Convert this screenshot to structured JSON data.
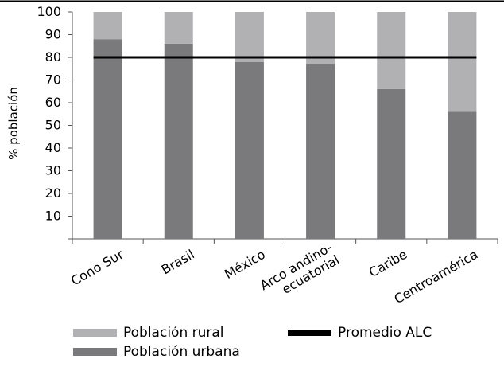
{
  "chart_data": {
    "type": "bar",
    "stacked": true,
    "categories": [
      "Cono Sur",
      "Brasil",
      "México",
      "Arco andino-ecuatorial",
      "Caribe",
      "Centroamérica"
    ],
    "category_label_lines": [
      [
        "Cono Sur"
      ],
      [
        "Brasil"
      ],
      [
        "México"
      ],
      [
        "Arco andino-",
        "ecuatorial"
      ],
      [
        "Caribe"
      ],
      [
        "Centroamérica"
      ]
    ],
    "series": [
      {
        "name": "Población urbana",
        "values": [
          88,
          86,
          78,
          77,
          66,
          56
        ],
        "color": "#7a7a7c"
      },
      {
        "name": "Población rural",
        "values": [
          12,
          14,
          22,
          23,
          34,
          44
        ],
        "color": "#b1b1b3"
      }
    ],
    "reference_line": {
      "name": "Promedio ALC",
      "value": 80,
      "color": "#000000"
    },
    "ylabel": "% población",
    "xlabel": "",
    "ylim": [
      0,
      100
    ],
    "yticks": [
      "10",
      "20",
      "30",
      "40",
      "50",
      "60",
      "70",
      "80",
      "90",
      "100"
    ],
    "grid": false,
    "legend_position": "bottom"
  },
  "legend": {
    "rural": "Población rural",
    "urban": "Población urbana",
    "avg": "Promedio ALC"
  }
}
